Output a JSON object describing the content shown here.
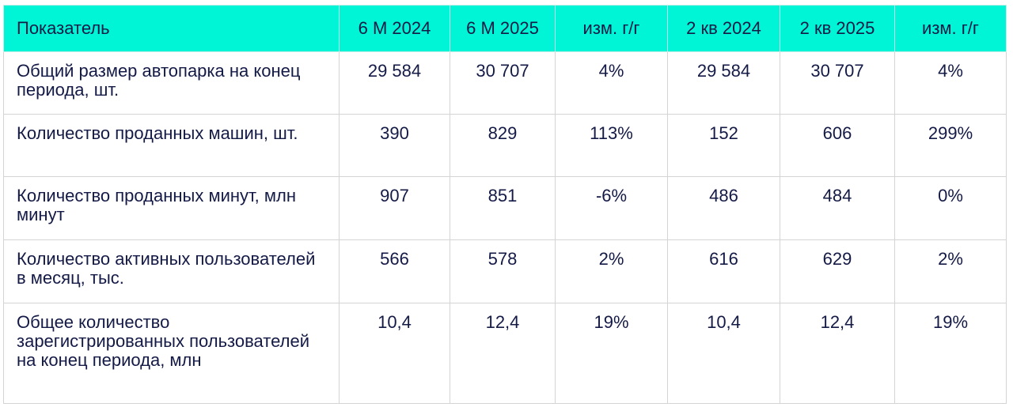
{
  "table": {
    "headers": [
      "Показатель",
      "6 М 2024",
      "6 М 2025",
      "изм. г/г",
      "2 кв 2024",
      "2 кв 2025",
      "изм. г/г"
    ],
    "rows": [
      {
        "label": "Общий размер автопарка на конец периода, шт.",
        "values": [
          "29 584",
          "30 707",
          "4%",
          "29 584",
          "30 707",
          "4%"
        ]
      },
      {
        "label": "Количество проданных машин, шт.",
        "values": [
          "390",
          "829",
          "113%",
          "152",
          "606",
          "299%"
        ]
      },
      {
        "label": "Количество проданных минут, млн минут",
        "values": [
          "907",
          "851",
          "-6%",
          "486",
          "484",
          "0%"
        ]
      },
      {
        "label": "Количество активных пользователей в месяц, тыс.",
        "values": [
          "566",
          "578",
          "2%",
          "616",
          "629",
          "2%"
        ]
      },
      {
        "label": "Общее количество зарегистрированных пользователей на конец периода, млн",
        "values": [
          "10,4",
          "12,4",
          "19%",
          "10,4",
          "12,4",
          "19%"
        ]
      }
    ]
  },
  "colors": {
    "header_bg": "#00f5d6",
    "text": "#141a46",
    "border": "#d4d4d4"
  }
}
